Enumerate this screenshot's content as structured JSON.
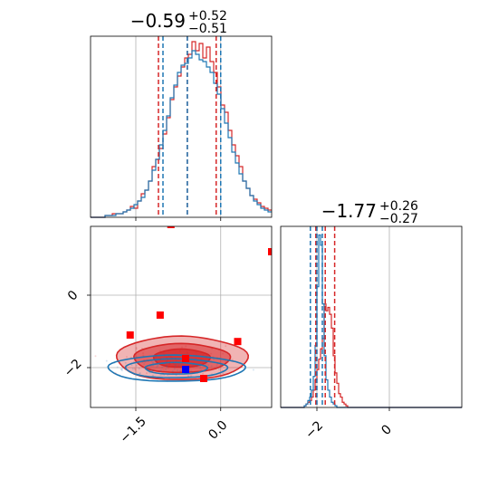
{
  "chart_data": [
    {
      "type": "histogram",
      "panel": "diag-1",
      "title": {
        "main": "−0.59",
        "sup": "+0.52",
        "sub": "−0.51"
      },
      "xlim": [
        -2.3,
        0.9
      ],
      "grid": true,
      "truth_line": -0.59,
      "bins_start": -2.3,
      "bin_width": 0.064,
      "series": [
        {
          "color": "#d62728",
          "counts": [
            0,
            0,
            0,
            0,
            1,
            1,
            2,
            2,
            2,
            3,
            4,
            6,
            5,
            9,
            13,
            15,
            20,
            28,
            32,
            38,
            46,
            55,
            65,
            72,
            78,
            83,
            88,
            90,
            97,
            92,
            96,
            88,
            94,
            86,
            80,
            72,
            62,
            58,
            48,
            40,
            34,
            28,
            20,
            16,
            12,
            10,
            8,
            6,
            5,
            4,
            3,
            2,
            1,
            1,
            1,
            0
          ],
          "quantiles": [
            -1.1,
            -0.59,
            -0.08
          ]
        },
        {
          "color": "#1f77b4",
          "counts": [
            0,
            0,
            0,
            0,
            1,
            1,
            1,
            2,
            2,
            3,
            4,
            5,
            7,
            9,
            11,
            15,
            20,
            26,
            32,
            40,
            48,
            56,
            66,
            73,
            80,
            84,
            85,
            88,
            92,
            90,
            87,
            86,
            83,
            80,
            74,
            68,
            60,
            52,
            44,
            36,
            30,
            24,
            20,
            16,
            12,
            9,
            7,
            5,
            4,
            3,
            2,
            1,
            1,
            1,
            0,
            0
          ],
          "quantiles": [
            -1.02,
            -0.59,
            0.0
          ]
        }
      ],
      "ylim": [
        0,
        100
      ]
    },
    {
      "type": "histogram",
      "panel": "diag-2",
      "title": {
        "main": "−1.77",
        "sup": "+0.26",
        "sub": "−0.27"
      },
      "xlim": [
        -3.0,
        2.0
      ],
      "grid": true,
      "truth_line": -2.0,
      "bins_start": -3.0,
      "bin_width": 0.05,
      "series": [
        {
          "color": "#d62728",
          "counts": [
            0,
            0,
            0,
            0,
            0,
            0,
            0,
            0,
            0,
            0,
            0,
            0,
            0,
            1,
            2,
            3,
            4,
            6,
            10,
            16,
            22,
            28,
            34,
            40,
            60,
            56,
            58,
            54,
            46,
            30,
            20,
            14,
            8,
            6,
            3,
            2,
            1,
            0,
            0,
            0,
            0,
            0,
            0,
            0,
            0,
            0,
            0,
            0,
            0,
            0,
            0,
            0,
            0,
            0,
            0,
            0,
            0,
            0,
            0,
            0,
            0,
            0,
            0,
            0,
            0,
            0,
            0,
            0,
            0,
            0,
            0,
            0,
            0,
            0,
            0,
            0,
            0,
            0,
            0,
            0,
            0,
            0,
            0,
            0,
            0,
            0,
            0,
            0,
            0,
            0,
            0,
            0,
            0,
            0,
            0,
            0,
            0,
            0,
            0,
            0
          ],
          "quantiles": [
            -2.03,
            -1.77,
            -1.51
          ]
        },
        {
          "color": "#1f77b4",
          "counts": [
            0,
            0,
            0,
            0,
            0,
            0,
            0,
            0,
            0,
            0,
            0,
            0,
            0,
            1,
            2,
            4,
            6,
            10,
            18,
            36,
            70,
            100,
            94,
            60,
            30,
            16,
            10,
            6,
            3,
            2,
            1,
            0,
            0,
            0,
            0,
            0,
            0,
            0,
            0,
            0,
            0,
            0,
            0,
            0,
            0,
            0,
            0,
            0,
            0,
            0,
            0,
            0,
            0,
            0,
            0,
            0,
            0,
            0,
            0,
            0,
            0,
            0,
            0,
            0,
            0,
            0,
            0,
            0,
            0,
            0,
            0,
            0,
            0,
            0,
            0,
            0,
            0,
            0,
            0,
            0,
            0,
            0,
            0,
            0,
            0,
            0,
            0,
            0,
            0,
            0,
            0,
            0,
            0,
            0,
            0,
            0,
            0,
            0,
            0,
            0
          ],
          "quantiles": [
            -2.18,
            -2.0,
            -1.85
          ]
        }
      ],
      "ylim": [
        0,
        105
      ]
    },
    {
      "type": "scatter",
      "panel": "corner-2d",
      "xlim": [
        -2.3,
        0.9
      ],
      "ylim": [
        -3.1,
        1.9
      ],
      "grid": true,
      "xticks": [
        -1.5,
        0.0
      ],
      "xtick_labels": [
        "−1.5",
        "0.0"
      ],
      "yticks": [
        0,
        -2
      ],
      "ytick_labels": [
        "0",
        "−2"
      ],
      "truth_lines": {
        "x": -0.59,
        "y": -2.0
      },
      "contours": [
        {
          "color": "#d62728",
          "fill": true,
          "levels": [
            {
              "cx": -0.69,
              "cy": -1.74,
              "rx": 1.16,
              "ry": 0.6,
              "alpha": 0.35
            },
            {
              "cx": -0.69,
              "cy": -1.74,
              "rx": 0.85,
              "ry": 0.4,
              "alpha": 0.55
            },
            {
              "cx": -0.69,
              "cy": -1.74,
              "rx": 0.5,
              "ry": 0.25,
              "alpha": 0.75
            }
          ]
        },
        {
          "color": "#1f77b4",
          "fill": false,
          "levels": [
            {
              "cx": -0.79,
              "cy": -2.02,
              "rx": 1.21,
              "ry": 0.36
            },
            {
              "cx": -0.79,
              "cy": -2.02,
              "rx": 0.9,
              "ry": 0.26
            },
            {
              "cx": -0.79,
              "cy": -2.02,
              "rx": 0.55,
              "ry": 0.16
            }
          ]
        }
      ],
      "markers_red": [
        {
          "x": -0.88,
          "y": 1.95
        },
        {
          "x": 0.9,
          "y": 1.2
        },
        {
          "x": -1.07,
          "y": -0.55
        },
        {
          "x": -1.6,
          "y": -1.1
        },
        {
          "x": 0.3,
          "y": -1.28
        },
        {
          "x": -0.62,
          "y": -1.75
        },
        {
          "x": -0.3,
          "y": -2.3
        }
      ],
      "markers_blue": [
        {
          "x": -0.62,
          "y": -2.05
        }
      ]
    }
  ],
  "colors": {
    "red": "#d62728",
    "blue": "#1f77b4",
    "grid": "#b0b0b0",
    "marker_red": "#ff0000",
    "marker_blue": "#0000ff"
  }
}
